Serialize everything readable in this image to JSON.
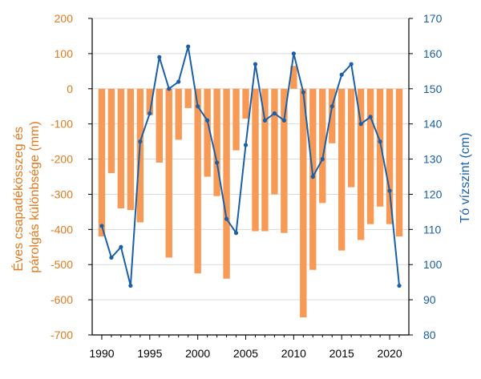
{
  "chart_data": {
    "type": "bar+line",
    "x": [
      1990,
      1991,
      1992,
      1993,
      1994,
      1995,
      1996,
      1997,
      1998,
      1999,
      2000,
      2001,
      2002,
      2003,
      2004,
      2005,
      2006,
      2007,
      2008,
      2009,
      2010,
      2011,
      2012,
      2013,
      2014,
      2015,
      2016,
      2017,
      2018,
      2019,
      2020,
      2021
    ],
    "x_ticks": [
      1990,
      1995,
      2000,
      2005,
      2010,
      2015,
      2020
    ],
    "bar_series": {
      "name": "Éves csapadékösszeg és párolgás különbsége (mm)",
      "color": "#f79a55",
      "values": [
        -420,
        -240,
        -340,
        -345,
        -380,
        -75,
        -210,
        -480,
        -145,
        -55,
        -525,
        -250,
        -305,
        -540,
        -175,
        -85,
        -405,
        -405,
        -300,
        -410,
        65,
        -650,
        -515,
        -325,
        -155,
        -460,
        -280,
        -430,
        -385,
        -335,
        -385,
        -420
      ]
    },
    "line_series": {
      "name": "Tó vízszint (cm)",
      "color": "#1a5fa8",
      "values": [
        111,
        102,
        105,
        94,
        135,
        143,
        159,
        150,
        152,
        162,
        145,
        141,
        129,
        113,
        109,
        134,
        157,
        141,
        143,
        141,
        160,
        149,
        125,
        130,
        145,
        154,
        157,
        140,
        142,
        135,
        121,
        94
      ]
    },
    "left_axis": {
      "label_line1": "Éves csapadékösszeg és",
      "label_line2": "párolgás különbsége (mm)",
      "ticks": [
        "200",
        "100",
        "0",
        "-100",
        "-200",
        "-300",
        "-400",
        "-500",
        "-600",
        "-700"
      ],
      "ylim": [
        -700,
        200
      ]
    },
    "right_axis": {
      "label": "Tó vízszint (cm)",
      "ticks": [
        "170",
        "160",
        "150",
        "140",
        "130",
        "120",
        "110",
        "100",
        "90",
        "80"
      ],
      "ylim": [
        80,
        170
      ]
    },
    "xlim": [
      1989,
      2022
    ],
    "grid": "horizontal"
  }
}
